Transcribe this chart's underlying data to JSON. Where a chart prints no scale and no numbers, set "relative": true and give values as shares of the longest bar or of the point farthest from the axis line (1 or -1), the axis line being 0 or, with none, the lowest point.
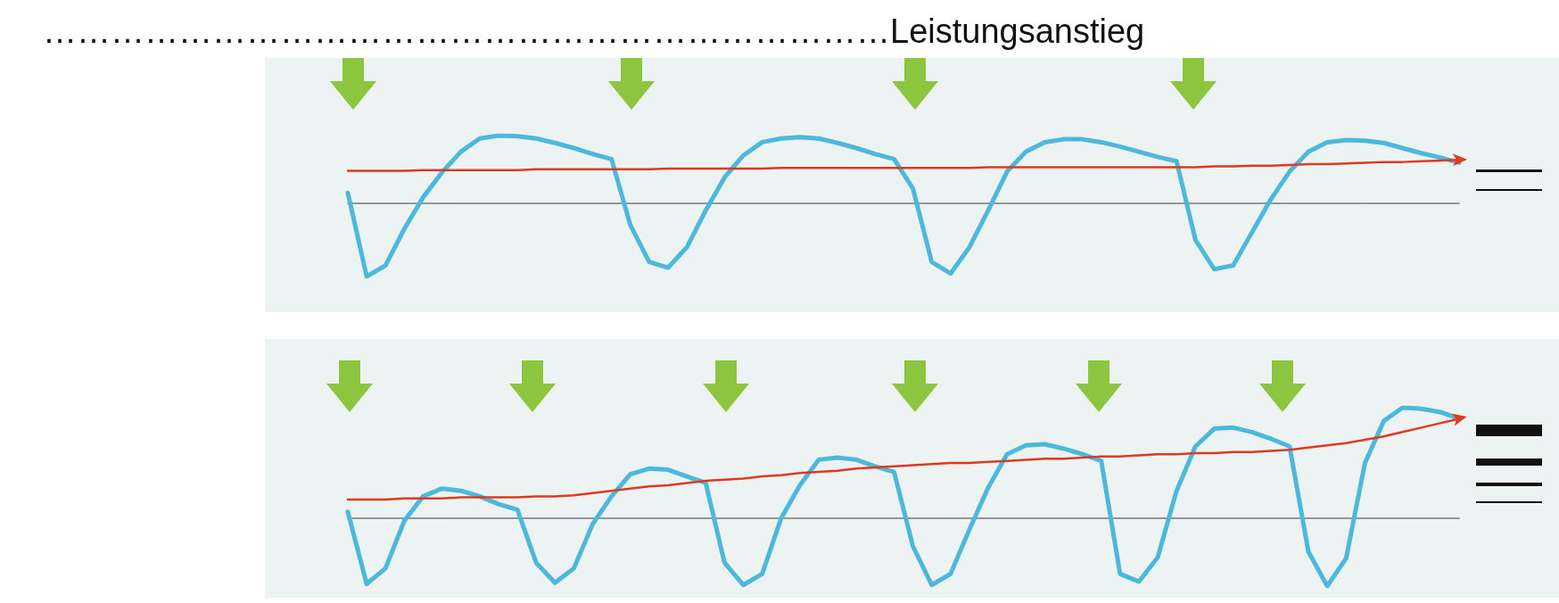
{
  "chart_data": [
    {
      "type": "line",
      "title": "…………………………………………………………………Leistungsanstieg",
      "relative": true,
      "marker": "none",
      "categories": [
        null,
        null,
        null,
        null,
        null,
        null,
        null,
        null,
        null,
        null,
        null,
        null,
        null,
        null,
        null,
        null,
        null,
        null,
        null,
        null,
        null,
        null,
        null,
        null,
        null,
        null,
        null,
        null,
        null,
        null,
        null,
        null,
        null,
        null,
        null,
        null,
        null,
        null,
        null,
        null,
        null,
        null,
        null,
        null,
        null,
        null,
        null,
        null,
        null,
        null,
        null,
        null,
        null,
        null,
        null,
        null,
        null,
        null,
        null,
        null
      ],
      "series": [
        {
          "color": "#4bb8dc",
          "values": [
            0.14,
            -1.0,
            -0.85,
            -0.35,
            0.08,
            0.42,
            0.7,
            0.88,
            0.92,
            0.91,
            0.88,
            0.82,
            0.75,
            0.67,
            0.6,
            -0.3,
            -0.8,
            -0.88,
            -0.6,
            -0.1,
            0.35,
            0.65,
            0.83,
            0.88,
            0.9,
            0.88,
            0.82,
            0.75,
            0.67,
            0.6,
            0.2,
            -0.8,
            -0.96,
            -0.6,
            -0.1,
            0.43,
            0.7,
            0.83,
            0.87,
            0.87,
            0.83,
            0.77,
            0.7,
            0.63,
            0.57,
            -0.5,
            -0.9,
            -0.85,
            -0.4,
            0.05,
            0.43,
            0.7,
            0.83,
            0.86,
            0.85,
            0.82,
            0.75,
            0.68,
            0.62,
            0.55
          ]
        },
        {
          "type": "line",
          "color": "#e03a1e",
          "values": [
            0.44,
            0.44,
            0.44,
            0.44,
            0.45,
            0.45,
            0.45,
            0.45,
            0.45,
            0.45,
            0.46,
            0.46,
            0.46,
            0.46,
            0.46,
            0.46,
            0.46,
            0.47,
            0.47,
            0.47,
            0.47,
            0.47,
            0.47,
            0.48,
            0.48,
            0.48,
            0.48,
            0.48,
            0.48,
            0.48,
            0.48,
            0.48,
            0.48,
            0.48,
            0.49,
            0.49,
            0.49,
            0.49,
            0.49,
            0.49,
            0.49,
            0.49,
            0.49,
            0.49,
            0.49,
            0.49,
            0.5,
            0.5,
            0.51,
            0.51,
            0.52,
            0.53,
            0.53,
            0.54,
            0.55,
            0.56,
            0.56,
            0.57,
            0.58,
            0.59
          ]
        }
      ]
    },
    {
      "type": "line",
      "relative": true,
      "marker": "none",
      "categories": [
        null,
        null,
        null,
        null,
        null,
        null,
        null,
        null,
        null,
        null,
        null,
        null,
        null,
        null,
        null,
        null,
        null,
        null,
        null,
        null,
        null,
        null,
        null,
        null,
        null,
        null,
        null,
        null,
        null,
        null,
        null,
        null,
        null,
        null,
        null,
        null,
        null,
        null,
        null,
        null,
        null,
        null,
        null,
        null,
        null,
        null,
        null,
        null,
        null,
        null,
        null,
        null,
        null,
        null,
        null,
        null,
        null,
        null,
        null,
        null
      ],
      "series": [
        {
          "color": "#4bb8dc",
          "values": [
            0.06,
            -0.59,
            -0.45,
            -0.02,
            0.2,
            0.27,
            0.25,
            0.2,
            0.13,
            0.08,
            -0.4,
            -0.58,
            -0.45,
            -0.05,
            0.2,
            0.4,
            0.45,
            0.44,
            0.38,
            0.32,
            -0.4,
            -0.6,
            -0.5,
            0.0,
            0.3,
            0.53,
            0.55,
            0.53,
            0.47,
            0.42,
            -0.25,
            -0.6,
            -0.5,
            -0.1,
            0.28,
            0.58,
            0.66,
            0.67,
            0.63,
            0.58,
            0.52,
            -0.5,
            -0.57,
            -0.35,
            0.25,
            0.65,
            0.81,
            0.82,
            0.78,
            0.72,
            0.65,
            -0.3,
            -0.61,
            -0.36,
            0.5,
            0.88,
            1.0,
            0.99,
            0.96,
            0.9
          ]
        },
        {
          "type": "line",
          "color": "#e03a1e",
          "values": [
            0.17,
            0.17,
            0.17,
            0.18,
            0.18,
            0.18,
            0.19,
            0.19,
            0.19,
            0.19,
            0.2,
            0.2,
            0.21,
            0.23,
            0.25,
            0.27,
            0.29,
            0.3,
            0.32,
            0.34,
            0.35,
            0.36,
            0.38,
            0.39,
            0.41,
            0.42,
            0.43,
            0.45,
            0.46,
            0.47,
            0.48,
            0.49,
            0.5,
            0.5,
            0.51,
            0.52,
            0.53,
            0.54,
            0.54,
            0.55,
            0.56,
            0.56,
            0.57,
            0.58,
            0.58,
            0.59,
            0.59,
            0.6,
            0.6,
            0.61,
            0.62,
            0.64,
            0.66,
            0.68,
            0.71,
            0.74,
            0.78,
            0.82,
            0.86,
            0.9
          ]
        }
      ]
    }
  ]
}
